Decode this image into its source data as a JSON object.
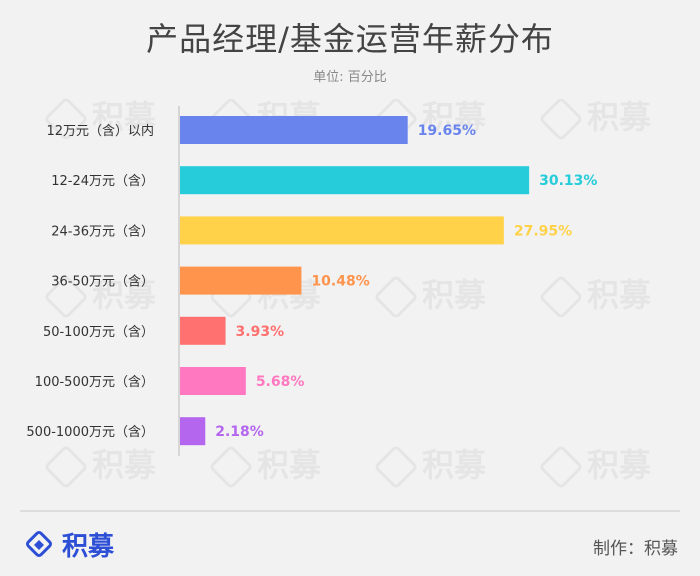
{
  "title": "产品经理/基金运营年薪分布",
  "subtitle": "单位: 百分比",
  "watermark_text": "积募",
  "footer": {
    "logo_text": "积募",
    "credit": "制作：积募"
  },
  "chart_data": {
    "type": "bar",
    "orientation": "horizontal",
    "title": "产品经理/基金运营年薪分布",
    "subtitle": "单位: 百分比",
    "categories": [
      "12万元（含）以内",
      "12-24万元（含）",
      "24-36万元（含）",
      "36-50万元（含）",
      "50-100万元（含）",
      "100-500万元（含）",
      "500-1000万元（含）"
    ],
    "values": [
      19.65,
      30.13,
      27.95,
      10.48,
      3.93,
      5.68,
      2.18
    ],
    "value_labels": [
      "19.65%",
      "30.13%",
      "27.95%",
      "10.48%",
      "3.93%",
      "5.68%",
      "2.18%"
    ],
    "colors": [
      "#6a84ee",
      "#26ccd9",
      "#ffd24a",
      "#ff944d",
      "#ff7070",
      "#ff78c0",
      "#b466ee"
    ],
    "xlim": [
      0,
      31.5
    ],
    "grid": false
  }
}
